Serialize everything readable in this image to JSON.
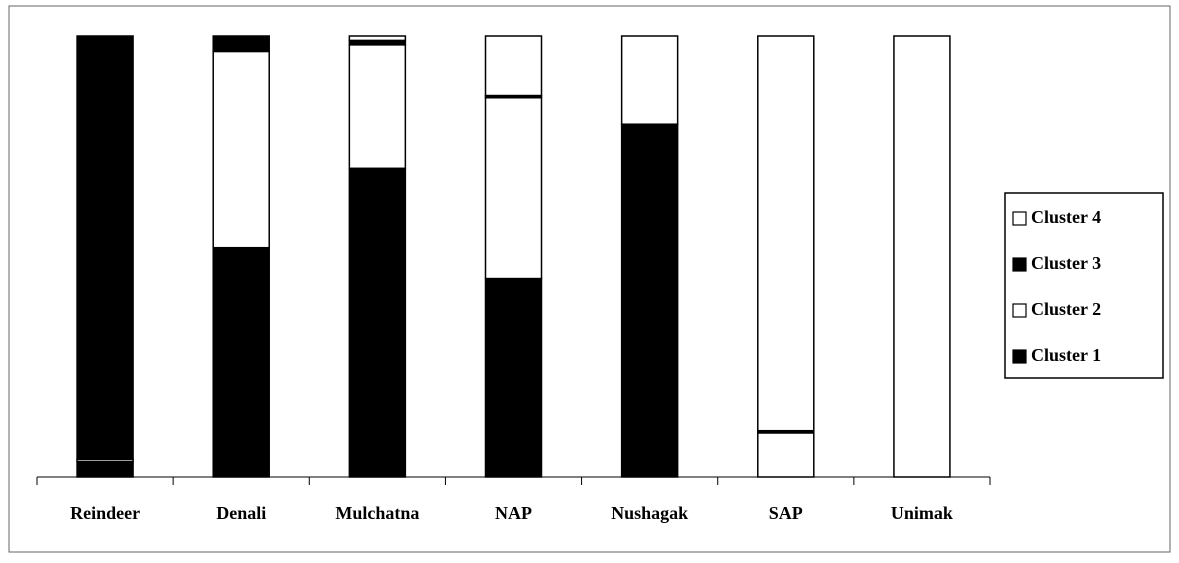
{
  "chart_data": {
    "type": "bar",
    "stacked": true,
    "categories": [
      "Reindeer",
      "Denali",
      "Mulchatna",
      "NAP",
      "Nushagak",
      "SAP",
      "Unimak"
    ],
    "series": [
      {
        "name": "Cluster 1",
        "color": "#000000",
        "values": [
          3.5,
          52,
          70,
          45,
          80,
          0,
          0
        ]
      },
      {
        "name": "Cluster 2",
        "color": "#ffffff",
        "values": [
          0.5,
          44.5,
          28,
          41,
          20,
          10,
          0
        ]
      },
      {
        "name": "Cluster 3",
        "color": "#000000",
        "values": [
          96,
          3.5,
          1,
          0.5,
          0,
          0.5,
          0
        ]
      },
      {
        "name": "Cluster 4",
        "color": "#ffffff",
        "values": [
          0,
          0,
          1,
          13.5,
          0,
          89.5,
          100
        ]
      }
    ],
    "ylim": [
      0,
      100
    ],
    "legend": "right"
  }
}
